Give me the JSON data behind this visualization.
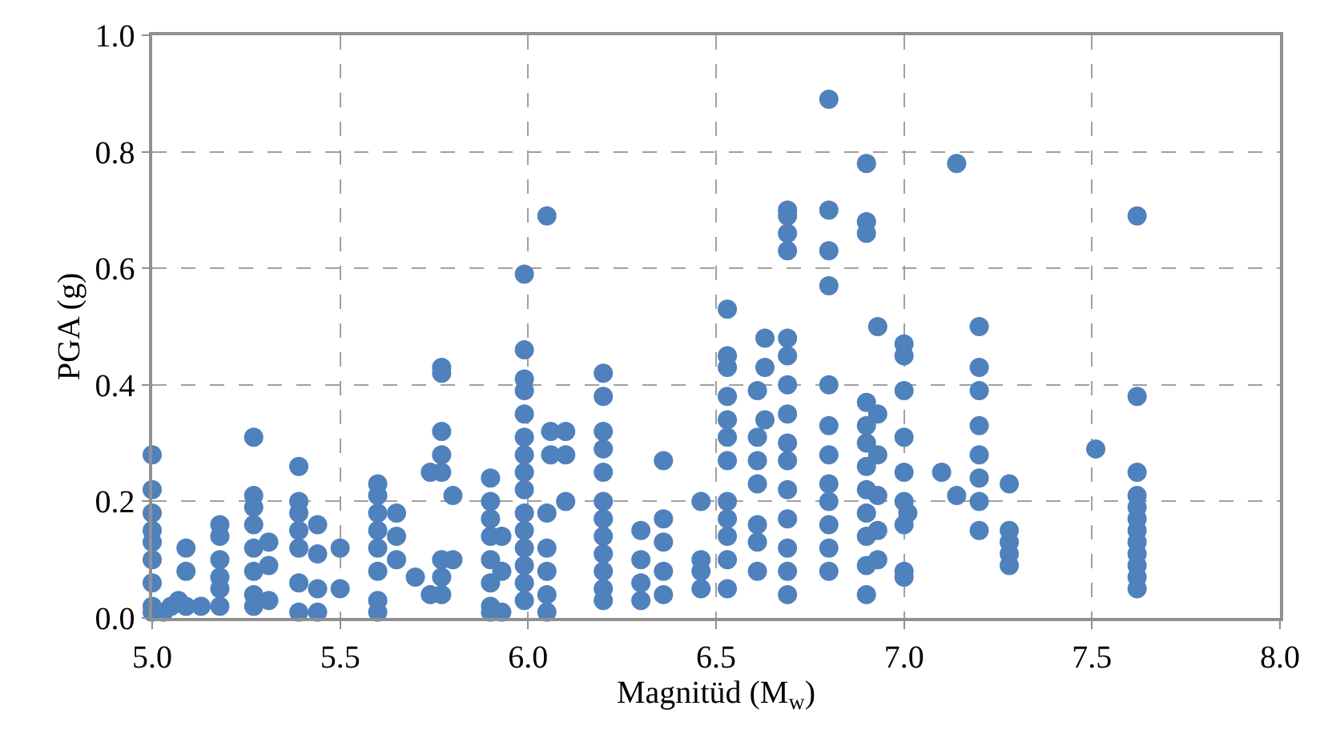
{
  "chart_data": {
    "type": "scatter",
    "xlabel": "Magnitüd (M$_{w}$)",
    "ylabel": "PGA (g)",
    "xlim": [
      5.0,
      8.0
    ],
    "xticks": [
      {
        "value": 5,
        "label": "5.0"
      },
      {
        "value": 5.5,
        "label": "5.5"
      },
      {
        "value": 6,
        "label": "6.0"
      },
      {
        "value": 6.5,
        "label": "6.5"
      },
      {
        "value": 7,
        "label": "7.0"
      },
      {
        "value": 7.5,
        "label": "7.5"
      },
      {
        "value": 8,
        "label": "8.0"
      }
    ],
    "ylim": [
      0,
      1.0
    ],
    "yticks": [
      {
        "value": 0,
        "label": "0.0"
      },
      {
        "value": 0.2,
        "label": "0.2"
      },
      {
        "value": 0.4,
        "label": "0.4"
      },
      {
        "value": 0.6,
        "label": "0.6"
      },
      {
        "value": 0.8,
        "label": "0.8"
      },
      {
        "value": 1,
        "label": "1.0"
      }
    ],
    "grid": true,
    "marker": "circle",
    "series": [
      {
        "color": "#4f81bd",
        "x": [
          5.0,
          5.0,
          5.0,
          5.0,
          5.0,
          5.0,
          5.0,
          5.0,
          5.0,
          5.03,
          5.05,
          5.07,
          5.09,
          5.09,
          5.09,
          5.13,
          5.18,
          5.18,
          5.18,
          5.18,
          5.18,
          5.18,
          5.27,
          5.27,
          5.27,
          5.27,
          5.27,
          5.27,
          5.27,
          5.27,
          5.31,
          5.31,
          5.31,
          5.39,
          5.39,
          5.39,
          5.39,
          5.39,
          5.39,
          5.39,
          5.44,
          5.44,
          5.44,
          5.44,
          5.5,
          5.5,
          5.6,
          5.6,
          5.6,
          5.6,
          5.6,
          5.6,
          5.6,
          5.6,
          5.65,
          5.65,
          5.65,
          5.7,
          5.74,
          5.74,
          5.77,
          5.77,
          5.77,
          5.77,
          5.77,
          5.77,
          5.77,
          5.77,
          5.8,
          5.8,
          5.9,
          5.9,
          5.9,
          5.9,
          5.9,
          5.9,
          5.9,
          5.9,
          5.93,
          5.93,
          5.93,
          5.99,
          5.99,
          5.99,
          5.99,
          5.99,
          5.99,
          5.99,
          5.99,
          5.99,
          5.99,
          5.99,
          5.99,
          5.99,
          5.99,
          5.99,
          6.05,
          6.05,
          6.05,
          6.05,
          6.05,
          6.05,
          6.06,
          6.06,
          6.1,
          6.1,
          6.1,
          6.2,
          6.2,
          6.2,
          6.2,
          6.2,
          6.2,
          6.2,
          6.2,
          6.2,
          6.2,
          6.2,
          6.2,
          6.3,
          6.3,
          6.3,
          6.3,
          6.36,
          6.36,
          6.36,
          6.36,
          6.36,
          6.46,
          6.46,
          6.46,
          6.46,
          6.53,
          6.53,
          6.53,
          6.53,
          6.53,
          6.53,
          6.53,
          6.53,
          6.53,
          6.53,
          6.53,
          6.53,
          6.61,
          6.61,
          6.61,
          6.61,
          6.61,
          6.61,
          6.61,
          6.63,
          6.63,
          6.63,
          6.69,
          6.69,
          6.69,
          6.69,
          6.69,
          6.69,
          6.69,
          6.69,
          6.69,
          6.69,
          6.69,
          6.69,
          6.69,
          6.69,
          6.69,
          6.8,
          6.8,
          6.8,
          6.8,
          6.8,
          6.8,
          6.8,
          6.8,
          6.8,
          6.8,
          6.8,
          6.8,
          6.9,
          6.9,
          6.9,
          6.9,
          6.9,
          6.9,
          6.9,
          6.9,
          6.9,
          6.9,
          6.9,
          6.9,
          6.93,
          6.93,
          6.93,
          6.93,
          6.93,
          6.93,
          7.0,
          7.0,
          7.0,
          7.0,
          7.0,
          7.0,
          7.0,
          7.0,
          7.0,
          7.01,
          7.1,
          7.14,
          7.14,
          7.2,
          7.2,
          7.2,
          7.2,
          7.2,
          7.2,
          7.2,
          7.2,
          7.28,
          7.28,
          7.28,
          7.28,
          7.28,
          7.51,
          7.62,
          7.62,
          7.62,
          7.62,
          7.62,
          7.62,
          7.62,
          7.62,
          7.62,
          7.62,
          7.62,
          7.62
        ],
        "values": [
          0.28,
          0.22,
          0.18,
          0.15,
          0.13,
          0.1,
          0.06,
          0.02,
          0.01,
          0.01,
          0.02,
          0.03,
          0.12,
          0.08,
          0.02,
          0.02,
          0.16,
          0.14,
          0.1,
          0.07,
          0.05,
          0.02,
          0.31,
          0.21,
          0.19,
          0.16,
          0.12,
          0.08,
          0.04,
          0.02,
          0.13,
          0.09,
          0.03,
          0.26,
          0.2,
          0.18,
          0.15,
          0.12,
          0.06,
          0.01,
          0.16,
          0.11,
          0.05,
          0.01,
          0.12,
          0.05,
          0.23,
          0.21,
          0.18,
          0.15,
          0.12,
          0.08,
          0.03,
          0.01,
          0.18,
          0.14,
          0.1,
          0.07,
          0.25,
          0.04,
          0.43,
          0.42,
          0.32,
          0.28,
          0.25,
          0.1,
          0.07,
          0.04,
          0.21,
          0.1,
          0.24,
          0.2,
          0.17,
          0.14,
          0.1,
          0.06,
          0.02,
          0.01,
          0.14,
          0.08,
          0.01,
          0.59,
          0.46,
          0.41,
          0.39,
          0.35,
          0.31,
          0.28,
          0.25,
          0.22,
          0.18,
          0.15,
          0.12,
          0.09,
          0.06,
          0.03,
          0.69,
          0.18,
          0.12,
          0.08,
          0.04,
          0.01,
          0.32,
          0.28,
          0.32,
          0.28,
          0.2,
          0.42,
          0.38,
          0.32,
          0.29,
          0.25,
          0.2,
          0.17,
          0.14,
          0.11,
          0.08,
          0.05,
          0.03,
          0.15,
          0.1,
          0.06,
          0.03,
          0.27,
          0.17,
          0.13,
          0.08,
          0.04,
          0.2,
          0.1,
          0.08,
          0.05,
          0.53,
          0.45,
          0.43,
          0.38,
          0.34,
          0.31,
          0.27,
          0.2,
          0.17,
          0.14,
          0.1,
          0.05,
          0.39,
          0.31,
          0.27,
          0.23,
          0.16,
          0.13,
          0.08,
          0.48,
          0.43,
          0.34,
          0.7,
          0.69,
          0.66,
          0.63,
          0.48,
          0.45,
          0.4,
          0.35,
          0.3,
          0.27,
          0.22,
          0.17,
          0.12,
          0.08,
          0.04,
          0.89,
          0.7,
          0.63,
          0.57,
          0.4,
          0.33,
          0.28,
          0.23,
          0.2,
          0.16,
          0.12,
          0.08,
          0.78,
          0.68,
          0.66,
          0.37,
          0.33,
          0.3,
          0.26,
          0.22,
          0.18,
          0.14,
          0.09,
          0.04,
          0.5,
          0.35,
          0.28,
          0.21,
          0.15,
          0.1,
          0.47,
          0.45,
          0.39,
          0.31,
          0.25,
          0.2,
          0.16,
          0.08,
          0.07,
          0.18,
          0.25,
          0.78,
          0.21,
          0.5,
          0.43,
          0.39,
          0.33,
          0.28,
          0.24,
          0.2,
          0.15,
          0.23,
          0.15,
          0.13,
          0.11,
          0.09,
          0.29,
          0.69,
          0.38,
          0.25,
          0.21,
          0.19,
          0.17,
          0.15,
          0.13,
          0.11,
          0.09,
          0.07,
          0.05
        ]
      }
    ]
  }
}
